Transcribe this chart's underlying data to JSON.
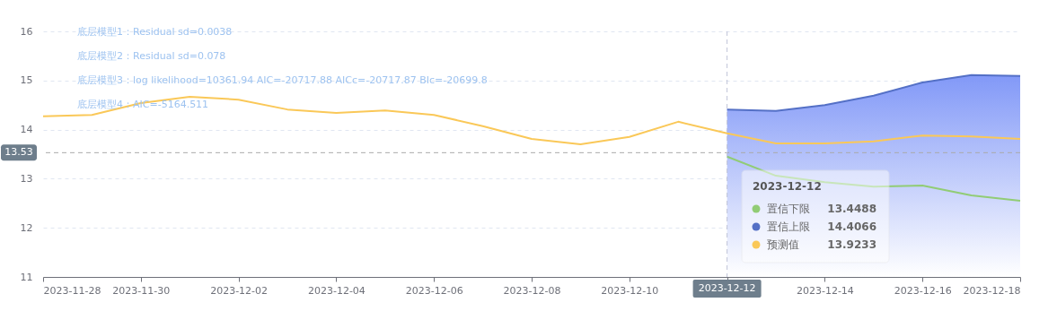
{
  "chart_data": {
    "type": "line",
    "x": [
      "2023-11-28",
      "2023-11-29",
      "2023-11-30",
      "2023-12-01",
      "2023-12-02",
      "2023-12-03",
      "2023-12-04",
      "2023-12-05",
      "2023-12-06",
      "2023-12-07",
      "2023-12-08",
      "2023-12-09",
      "2023-12-10",
      "2023-12-11",
      "2023-12-12",
      "2023-12-13",
      "2023-12-14",
      "2023-12-15",
      "2023-12-16",
      "2023-12-17",
      "2023-12-18"
    ],
    "series": [
      {
        "name": "置信下限",
        "color": "#91cc75",
        "x": [
          "2023-12-12",
          "2023-12-13",
          "2023-12-14",
          "2023-12-15",
          "2023-12-16",
          "2023-12-17",
          "2023-12-18"
        ],
        "values": [
          13.4488,
          13.06,
          12.93,
          12.84,
          12.86,
          12.66,
          12.55
        ]
      },
      {
        "name": "置信上限",
        "type": "area",
        "color": "#5470c6",
        "x": [
          "2023-12-12",
          "2023-12-13",
          "2023-12-14",
          "2023-12-15",
          "2023-12-16",
          "2023-12-17",
          "2023-12-18"
        ],
        "values": [
          14.4066,
          14.38,
          14.5,
          14.69,
          14.96,
          15.11,
          15.09
        ]
      },
      {
        "name": "预测值",
        "color": "#fac858",
        "values": [
          14.27,
          14.3,
          14.54,
          14.67,
          14.61,
          14.41,
          14.34,
          14.39,
          14.3,
          14.07,
          13.81,
          13.7,
          13.85,
          14.16,
          13.9233,
          13.72,
          13.72,
          13.76,
          13.88,
          13.86,
          13.81
        ]
      }
    ],
    "xlim": [
      "2023-11-28",
      "2023-12-18"
    ],
    "xticks": [
      "2023-11-28",
      "2023-11-30",
      "2023-12-02",
      "2023-12-04",
      "2023-12-06",
      "2023-12-08",
      "2023-12-10",
      "2023-12-12",
      "2023-12-14",
      "2023-12-16",
      "2023-12-18"
    ],
    "ylim": [
      11,
      16
    ],
    "yticks": [
      11,
      12,
      13,
      14,
      15,
      16
    ],
    "grid": "y",
    "legend": "bottom right",
    "ref_lines": [
      {
        "axis": "y",
        "value": 13.53,
        "label": "13.53",
        "line_style": "dashed"
      },
      {
        "axis": "x",
        "value": "2023-12-12",
        "label": "2023-12-12",
        "line_style": "dashed"
      }
    ],
    "annotations": [
      "底层模型1：Residual sd=0.0038",
      "底层模型2：Residual sd=0.078",
      "底层模型3：log likelihood=10361.94 AIC=-20717.88 AICc=-20717.87 BIc=-20699.8",
      "底层模型4：AIC=-5164.511",
      "13.4488",
      "14.4066",
      "13.9233"
    ]
  }
}
